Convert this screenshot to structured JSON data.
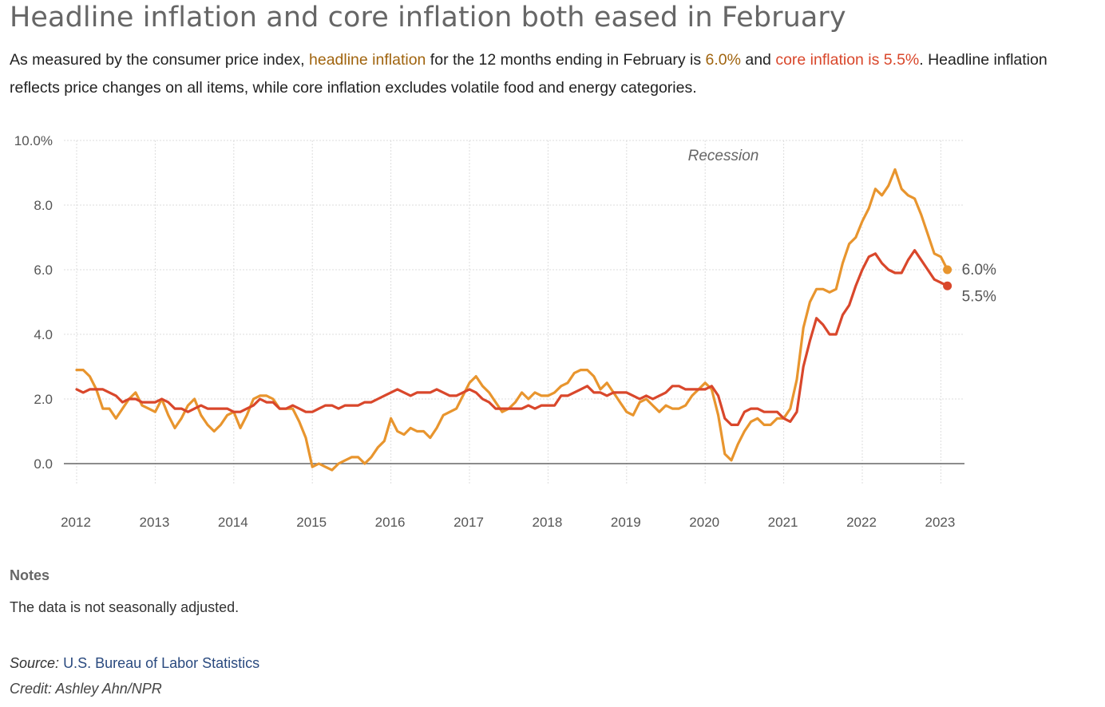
{
  "header": {
    "title": "Headline inflation and core inflation both eased in February",
    "sub_1": "As measured by the consumer price index, ",
    "sub_headline": "headline inflation",
    "sub_2": " for the 12 months ending in February is ",
    "sub_headline_value": "6.0%",
    "sub_3": " and ",
    "sub_core": "core inflation is 5.5%",
    "sub_4": ". Headline inflation reflects price changes on all items, while core inflation excludes volatile food and energy categories."
  },
  "notes": {
    "heading": "Notes",
    "text": "The data is not seasonally adjusted."
  },
  "source": {
    "label": "Source:",
    "link_text": "U.S. Bureau of Labor Statistics"
  },
  "credit": "Credit: Ashley Ahn/NPR",
  "colors": {
    "headline": "#e8952e",
    "core": "#d9472b",
    "headline_text": "#a0640f",
    "core_text": "#d9472b"
  },
  "chart_data": {
    "type": "line",
    "x_start": "2012-01",
    "x_frequency": "monthly",
    "x_ticks": [
      "2012",
      "2013",
      "2014",
      "2015",
      "2016",
      "2017",
      "2018",
      "2019",
      "2020",
      "2021",
      "2022",
      "2023"
    ],
    "y_ticks": [
      "10.0%",
      "8.0",
      "6.0",
      "4.0",
      "2.0",
      "0.0"
    ],
    "ylim": [
      -1.1,
      10.0
    ],
    "annotation": "Recession",
    "grid": true,
    "series": [
      {
        "name": "headline inflation",
        "end_label": "6.0%",
        "values": [
          2.9,
          2.9,
          2.7,
          2.3,
          1.7,
          1.7,
          1.4,
          1.7,
          2.0,
          2.2,
          1.8,
          1.7,
          1.6,
          2.0,
          1.5,
          1.1,
          1.4,
          1.8,
          2.0,
          1.5,
          1.2,
          1.0,
          1.2,
          1.5,
          1.6,
          1.1,
          1.5,
          2.0,
          2.1,
          2.1,
          2.0,
          1.7,
          1.7,
          1.7,
          1.3,
          0.8,
          -0.1,
          0.0,
          -0.1,
          -0.2,
          0.0,
          0.1,
          0.2,
          0.2,
          0.0,
          0.2,
          0.5,
          0.7,
          1.4,
          1.0,
          0.9,
          1.1,
          1.0,
          1.0,
          0.8,
          1.1,
          1.5,
          1.6,
          1.7,
          2.1,
          2.5,
          2.7,
          2.4,
          2.2,
          1.9,
          1.6,
          1.7,
          1.9,
          2.2,
          2.0,
          2.2,
          2.1,
          2.1,
          2.2,
          2.4,
          2.5,
          2.8,
          2.9,
          2.9,
          2.7,
          2.3,
          2.5,
          2.2,
          1.9,
          1.6,
          1.5,
          1.9,
          2.0,
          1.8,
          1.6,
          1.8,
          1.7,
          1.7,
          1.8,
          2.1,
          2.3,
          2.5,
          2.3,
          1.5,
          0.3,
          0.1,
          0.6,
          1.0,
          1.3,
          1.4,
          1.2,
          1.2,
          1.4,
          1.4,
          1.7,
          2.6,
          4.2,
          5.0,
          5.4,
          5.4,
          5.3,
          5.4,
          6.2,
          6.8,
          7.0,
          7.5,
          7.9,
          8.5,
          8.3,
          8.6,
          9.1,
          8.5,
          8.3,
          8.2,
          7.7,
          7.1,
          6.5,
          6.4,
          6.0
        ],
        "color_key": "headline"
      },
      {
        "name": "core inflation",
        "end_label": "5.5%",
        "values": [
          2.3,
          2.2,
          2.3,
          2.3,
          2.3,
          2.2,
          2.1,
          1.9,
          2.0,
          2.0,
          1.9,
          1.9,
          1.9,
          2.0,
          1.9,
          1.7,
          1.7,
          1.6,
          1.7,
          1.8,
          1.7,
          1.7,
          1.7,
          1.7,
          1.6,
          1.6,
          1.7,
          1.8,
          2.0,
          1.9,
          1.9,
          1.7,
          1.7,
          1.8,
          1.7,
          1.6,
          1.6,
          1.7,
          1.8,
          1.8,
          1.7,
          1.8,
          1.8,
          1.8,
          1.9,
          1.9,
          2.0,
          2.1,
          2.2,
          2.3,
          2.2,
          2.1,
          2.2,
          2.2,
          2.2,
          2.3,
          2.2,
          2.1,
          2.1,
          2.2,
          2.3,
          2.2,
          2.0,
          1.9,
          1.7,
          1.7,
          1.7,
          1.7,
          1.7,
          1.8,
          1.7,
          1.8,
          1.8,
          1.8,
          2.1,
          2.1,
          2.2,
          2.3,
          2.4,
          2.2,
          2.2,
          2.1,
          2.2,
          2.2,
          2.2,
          2.1,
          2.0,
          2.1,
          2.0,
          2.1,
          2.2,
          2.4,
          2.4,
          2.3,
          2.3,
          2.3,
          2.3,
          2.4,
          2.1,
          1.4,
          1.2,
          1.2,
          1.6,
          1.7,
          1.7,
          1.6,
          1.6,
          1.6,
          1.4,
          1.3,
          1.6,
          3.0,
          3.8,
          4.5,
          4.3,
          4.0,
          4.0,
          4.6,
          4.9,
          5.5,
          6.0,
          6.4,
          6.5,
          6.2,
          6.0,
          5.9,
          5.9,
          6.3,
          6.6,
          6.3,
          6.0,
          5.7,
          5.6,
          5.5
        ],
        "color_key": "core"
      }
    ]
  }
}
